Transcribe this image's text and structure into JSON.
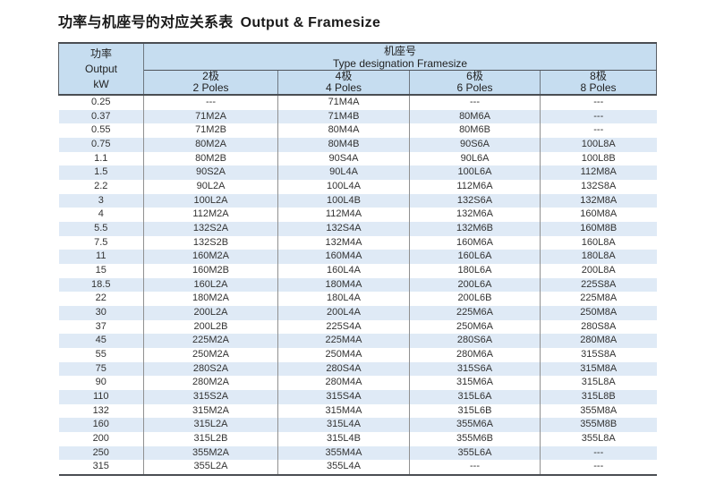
{
  "title": {
    "zh": "功率与机座号的对应关系表",
    "en": "Output & Framesize"
  },
  "colors": {
    "header_bg": "#c6ddf0",
    "stripe_bg": "#dfeaf6",
    "border_dark": "#4a4e53",
    "divider_gray": "#909090",
    "text": "#333333"
  },
  "table": {
    "output_header": {
      "zh": "功率",
      "en": "Output",
      "unit": "kW"
    },
    "frame_header": {
      "zh": "机座号",
      "en": "Type designation Framesize"
    },
    "pole_headers": [
      {
        "zh": "2极",
        "en": "2 Poles"
      },
      {
        "zh": "4极",
        "en": "4 Poles"
      },
      {
        "zh": "6极",
        "en": "6 Poles"
      },
      {
        "zh": "8极",
        "en": "8 Poles"
      }
    ],
    "rows": [
      {
        "kw": "0.25",
        "p2": "---",
        "p4": "71M4A",
        "p6": "---",
        "p8": "---"
      },
      {
        "kw": "0.37",
        "p2": "71M2A",
        "p4": "71M4B",
        "p6": "80M6A",
        "p8": "---"
      },
      {
        "kw": "0.55",
        "p2": "71M2B",
        "p4": "80M4A",
        "p6": "80M6B",
        "p8": "---"
      },
      {
        "kw": "0.75",
        "p2": "80M2A",
        "p4": "80M4B",
        "p6": "90S6A",
        "p8": "100L8A"
      },
      {
        "kw": "1.1",
        "p2": "80M2B",
        "p4": "90S4A",
        "p6": "90L6A",
        "p8": "100L8B"
      },
      {
        "kw": "1.5",
        "p2": "90S2A",
        "p4": "90L4A",
        "p6": "100L6A",
        "p8": "112M8A"
      },
      {
        "kw": "2.2",
        "p2": "90L2A",
        "p4": "100L4A",
        "p6": "112M6A",
        "p8": "132S8A"
      },
      {
        "kw": "3",
        "p2": "100L2A",
        "p4": "100L4B",
        "p6": "132S6A",
        "p8": "132M8A"
      },
      {
        "kw": "4",
        "p2": "112M2A",
        "p4": "112M4A",
        "p6": "132M6A",
        "p8": "160M8A"
      },
      {
        "kw": "5.5",
        "p2": "132S2A",
        "p4": "132S4A",
        "p6": "132M6B",
        "p8": "160M8B"
      },
      {
        "kw": "7.5",
        "p2": "132S2B",
        "p4": "132M4A",
        "p6": "160M6A",
        "p8": "160L8A"
      },
      {
        "kw": "11",
        "p2": "160M2A",
        "p4": "160M4A",
        "p6": "160L6A",
        "p8": "180L8A"
      },
      {
        "kw": "15",
        "p2": "160M2B",
        "p4": "160L4A",
        "p6": "180L6A",
        "p8": "200L8A"
      },
      {
        "kw": "18.5",
        "p2": "160L2A",
        "p4": "180M4A",
        "p6": "200L6A",
        "p8": "225S8A"
      },
      {
        "kw": "22",
        "p2": "180M2A",
        "p4": "180L4A",
        "p6": "200L6B",
        "p8": "225M8A"
      },
      {
        "kw": "30",
        "p2": "200L2A",
        "p4": "200L4A",
        "p6": "225M6A",
        "p8": "250M8A"
      },
      {
        "kw": "37",
        "p2": "200L2B",
        "p4": "225S4A",
        "p6": "250M6A",
        "p8": "280S8A"
      },
      {
        "kw": "45",
        "p2": "225M2A",
        "p4": "225M4A",
        "p6": "280S6A",
        "p8": "280M8A"
      },
      {
        "kw": "55",
        "p2": "250M2A",
        "p4": "250M4A",
        "p6": "280M6A",
        "p8": "315S8A"
      },
      {
        "kw": "75",
        "p2": "280S2A",
        "p4": "280S4A",
        "p6": "315S6A",
        "p8": "315M8A"
      },
      {
        "kw": "90",
        "p2": "280M2A",
        "p4": "280M4A",
        "p6": "315M6A",
        "p8": "315L8A"
      },
      {
        "kw": "110",
        "p2": "315S2A",
        "p4": "315S4A",
        "p6": "315L6A",
        "p8": "315L8B"
      },
      {
        "kw": "132",
        "p2": "315M2A",
        "p4": "315M4A",
        "p6": "315L6B",
        "p8": "355M8A"
      },
      {
        "kw": "160",
        "p2": "315L2A",
        "p4": "315L4A",
        "p6": "355M6A",
        "p8": "355M8B"
      },
      {
        "kw": "200",
        "p2": "315L2B",
        "p4": "315L4B",
        "p6": "355M6B",
        "p8": "355L8A"
      },
      {
        "kw": "250",
        "p2": "355M2A",
        "p4": "355M4A",
        "p6": "355L6A",
        "p8": "---"
      },
      {
        "kw": "315",
        "p2": "355L2A",
        "p4": "355L4A",
        "p6": "---",
        "p8": "---"
      }
    ]
  }
}
